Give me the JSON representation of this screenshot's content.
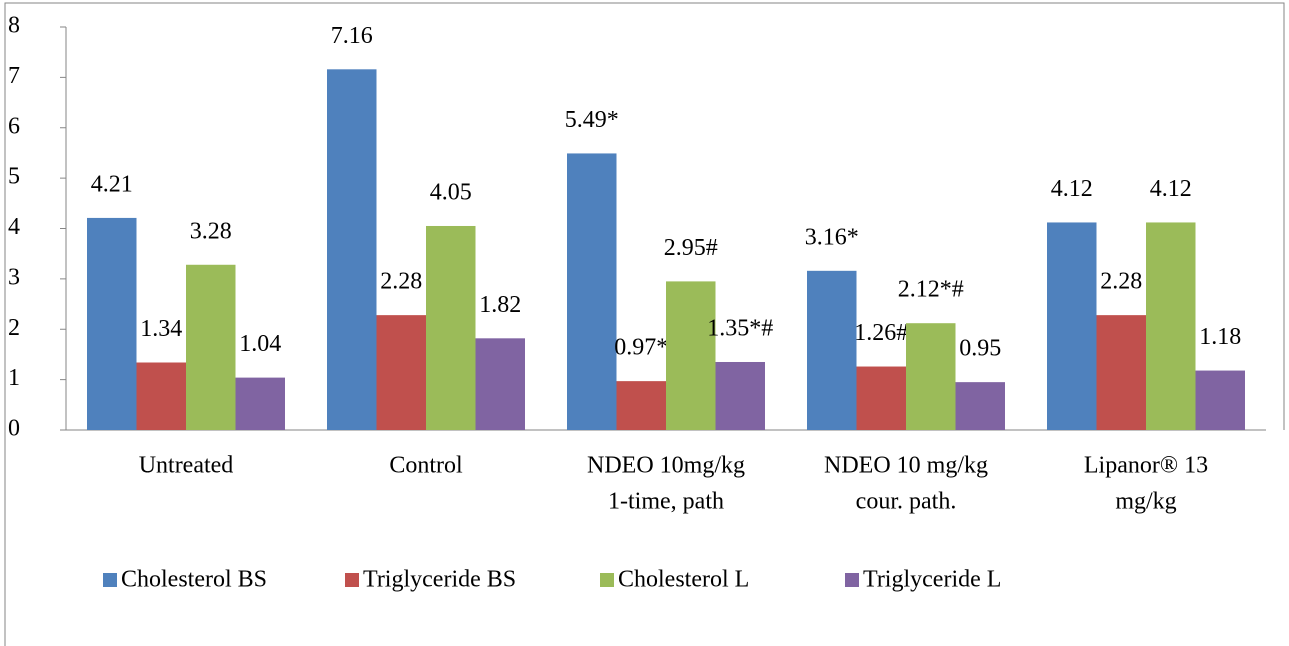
{
  "chart_data": {
    "type": "bar",
    "categories": [
      [
        "Untreated"
      ],
      [
        "Control"
      ],
      [
        "NDEO 10mg/kg",
        "1-time, path"
      ],
      [
        "NDEO 10 mg/kg",
        "cour. path."
      ],
      [
        "Lipanor® 13",
        "mg/kg"
      ]
    ],
    "series": [
      {
        "name": "Cholesterol BS",
        "color": "#4f81bd",
        "values": [
          4.21,
          7.16,
          5.49,
          3.16,
          4.12
        ],
        "value_labels": [
          "4.21",
          "7.16",
          "5.49*",
          "3.16*",
          "4.12"
        ]
      },
      {
        "name": "Triglyceride BS",
        "color": "#c0504d",
        "values": [
          1.34,
          2.28,
          0.97,
          1.26,
          2.28
        ],
        "value_labels": [
          "1.34",
          "2.28",
          "0.97*",
          "1.26#",
          "2.28"
        ]
      },
      {
        "name": "Cholesterol L",
        "color": "#9bbb59",
        "values": [
          3.28,
          4.05,
          2.95,
          2.12,
          4.12
        ],
        "value_labels": [
          "3.28",
          "4.05",
          "2.95#",
          "2.12*#",
          "4.12"
        ]
      },
      {
        "name": "Triglyceride L",
        "color": "#8064a2",
        "values": [
          1.04,
          1.82,
          1.35,
          0.95,
          1.18
        ],
        "value_labels": [
          "1.04",
          "1.82",
          "1.35*#",
          "0.95",
          "1.18"
        ]
      }
    ],
    "ylim": [
      0,
      8
    ],
    "yticks": [
      0,
      1,
      2,
      3,
      4,
      5,
      6,
      7,
      8
    ],
    "legend": "bottom"
  }
}
